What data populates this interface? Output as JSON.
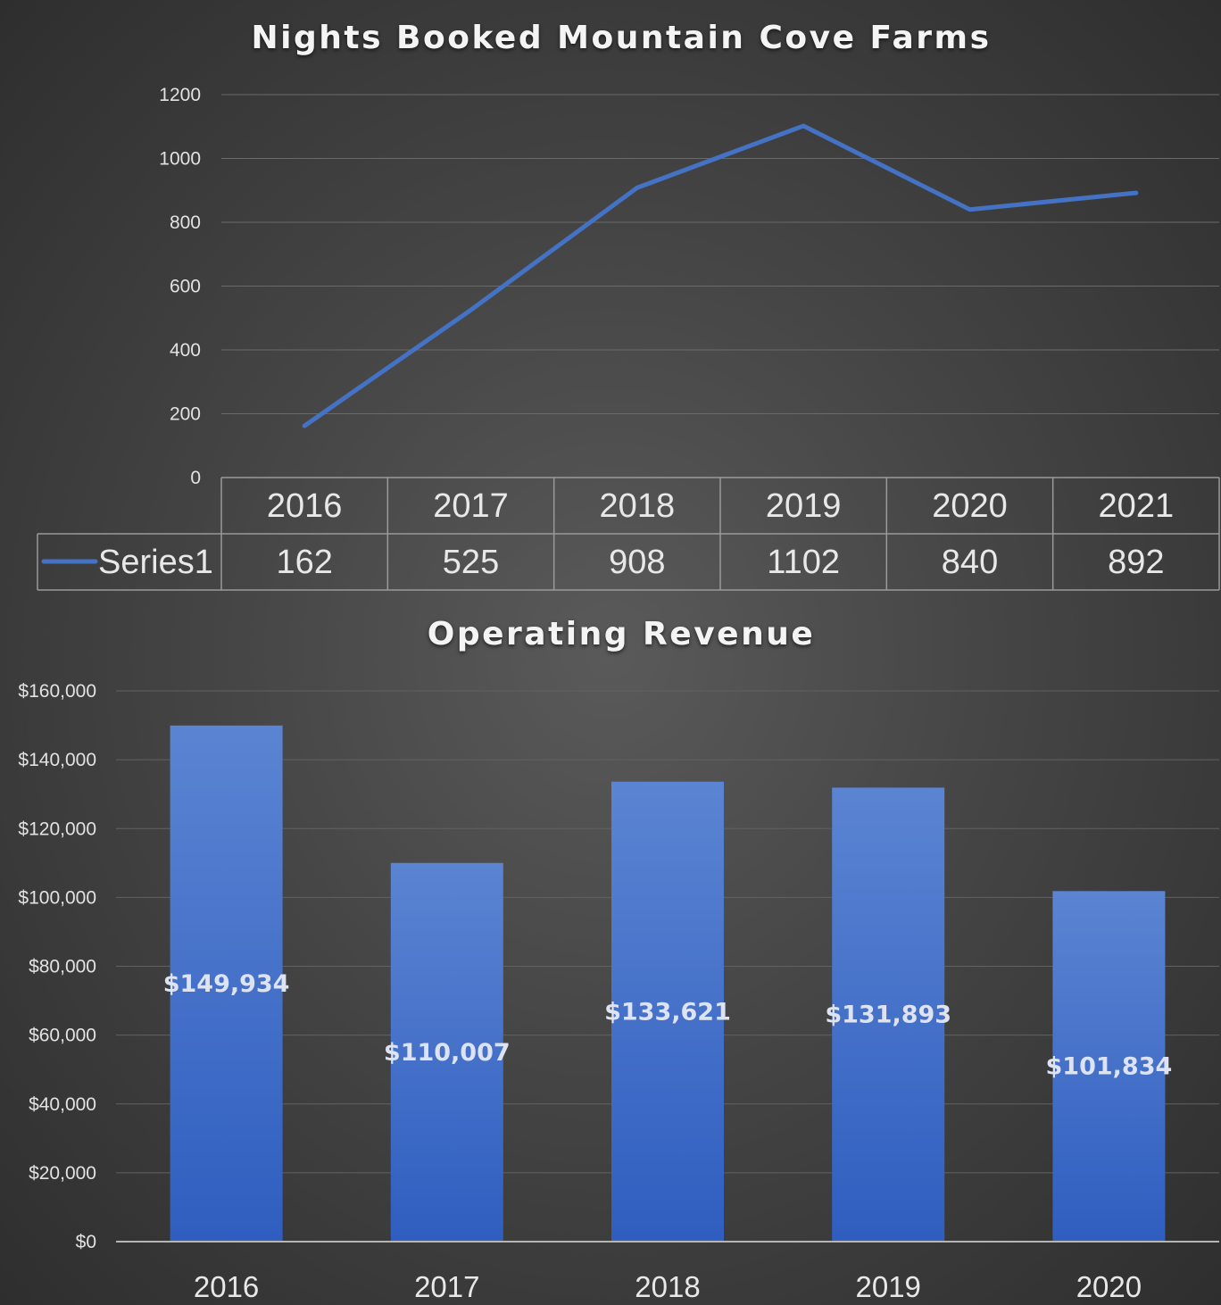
{
  "chart_data": [
    {
      "type": "line",
      "title": "Nights Booked Mountain Cove Farms",
      "categories": [
        "2016",
        "2017",
        "2018",
        "2019",
        "2020",
        "2021"
      ],
      "series": [
        {
          "name": "Series1",
          "values": [
            162,
            525,
            908,
            1102,
            840,
            892
          ],
          "color": "#4472c4"
        }
      ],
      "ylim": [
        0,
        1200
      ],
      "yticks": [
        "0",
        "200",
        "400",
        "600",
        "800",
        "1000",
        "1200"
      ],
      "ytick_values": [
        0,
        200,
        400,
        600,
        800,
        1000,
        1200
      ],
      "grid": true,
      "legend": "data-table"
    },
    {
      "type": "bar",
      "title": "Operating Revenue",
      "categories": [
        "2016",
        "2017",
        "2018",
        "2019",
        "2020"
      ],
      "values": [
        149934,
        110007,
        133621,
        131893,
        101834
      ],
      "data_labels": [
        "$149,934",
        "$110,007",
        "$133,621",
        "$131,893",
        "$101,834"
      ],
      "ylim": [
        0,
        160000
      ],
      "yticks": [
        "$0",
        "$20,000",
        "$40,000",
        "$60,000",
        "$80,000",
        "$100,000",
        "$120,000",
        "$140,000",
        "$160,000"
      ],
      "ytick_values": [
        0,
        20000,
        40000,
        60000,
        80000,
        100000,
        120000,
        140000,
        160000
      ],
      "grid": true,
      "color": "#4472c4"
    }
  ]
}
